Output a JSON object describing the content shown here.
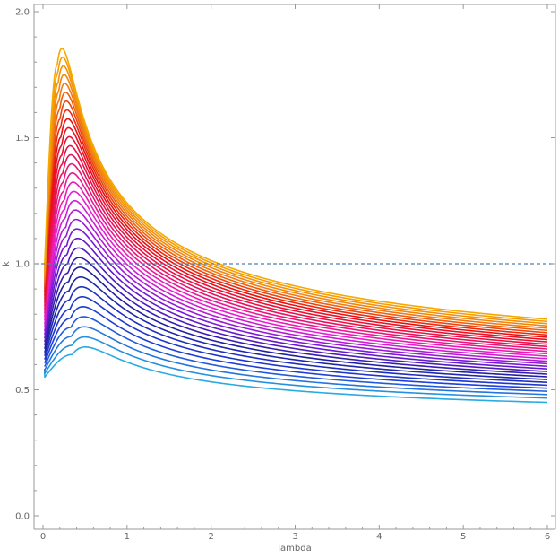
{
  "chart_data": {
    "type": "line",
    "title": "",
    "xlabel": "lambda",
    "ylabel": "k",
    "xlim": [
      0,
      6
    ],
    "ylim": [
      0,
      2
    ],
    "x_ticks": [
      "0",
      "1",
      "2",
      "3",
      "4",
      "5",
      "6"
    ],
    "y_ticks": [
      "0.0",
      "0.5",
      "1.0",
      "1.5",
      "2.0"
    ],
    "grid": false,
    "legend": "none",
    "reference_line": {
      "y": 1.0,
      "style": "dashed",
      "color": "#4a7fb0"
    },
    "curve_family": {
      "count": 33,
      "x_start": 0.02,
      "x_end": 6.0,
      "color_gradient": [
        "#29abe2",
        "#1e3fd8",
        "#1f1fa0",
        "#7a19d6",
        "#e81fd0",
        "#e8125a",
        "#e81010",
        "#f07a10",
        "#f5a800"
      ],
      "lowest_curve": {
        "start_y": 0.55,
        "peak_x": 0.35,
        "peak_y": 0.64,
        "end_y": 0.45
      },
      "highest_curve": {
        "start_y": 1.0,
        "peak_x": 0.17,
        "peak_y": 1.79,
        "end_y": 0.78
      }
    }
  }
}
